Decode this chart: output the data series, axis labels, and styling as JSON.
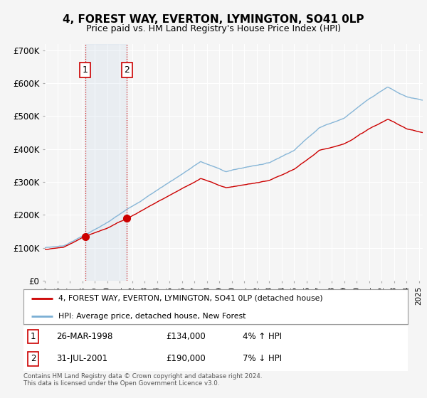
{
  "title": "4, FOREST WAY, EVERTON, LYMINGTON, SO41 0LP",
  "subtitle": "Price paid vs. HM Land Registry's House Price Index (HPI)",
  "ylim": [
    0,
    720000
  ],
  "yticks": [
    0,
    100000,
    200000,
    300000,
    400000,
    500000,
    600000,
    700000
  ],
  "ytick_labels": [
    "£0",
    "£100K",
    "£200K",
    "£300K",
    "£400K",
    "£500K",
    "£600K",
    "£700K"
  ],
  "hpi_color": "#7bafd4",
  "price_color": "#cc0000",
  "vline_color": "#cc0000",
  "background_color": "#f5f5f5",
  "grid_color": "#ffffff",
  "transactions": [
    {
      "date_year": 1998.23,
      "price": 134000,
      "label": "1"
    },
    {
      "date_year": 2001.58,
      "price": 190000,
      "label": "2"
    }
  ],
  "legend_entries": [
    {
      "label": "4, FOREST WAY, EVERTON, LYMINGTON, SO41 0LP (detached house)",
      "color": "#cc0000"
    },
    {
      "label": "HPI: Average price, detached house, New Forest",
      "color": "#7bafd4"
    }
  ],
  "table_entries": [
    {
      "num": "1",
      "date": "26-MAR-1998",
      "price": "£134,000",
      "change": "4% ↑ HPI"
    },
    {
      "num": "2",
      "date": "31-JUL-2001",
      "price": "£190,000",
      "change": "7% ↓ HPI"
    }
  ],
  "footnote": "Contains HM Land Registry data © Crown copyright and database right 2024.\nThis data is licensed under the Open Government Licence v3.0.",
  "xstart": 1995.0,
  "xend": 2025.3
}
